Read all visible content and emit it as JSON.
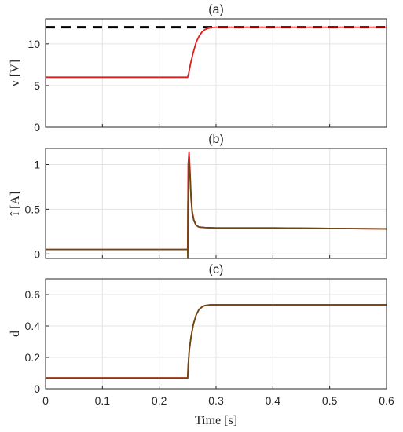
{
  "figure": {
    "xlabel": "Time [s]"
  },
  "chart_data": [
    {
      "type": "line",
      "title": "(a)",
      "xlabel": "",
      "ylabel": "v [V]",
      "xlim": [
        0,
        0.6
      ],
      "ylim": [
        0,
        13
      ],
      "xticks": [
        0,
        0.1,
        0.2,
        0.3,
        0.4,
        0.5,
        0.6
      ],
      "xtick_labels": [
        "",
        "",
        "",
        "",
        "",
        "",
        ""
      ],
      "yticks": [
        0,
        5,
        10
      ],
      "ytick_labels": [
        "0",
        "5",
        "10"
      ],
      "grid": true,
      "series": [
        {
          "role": "reference",
          "color": "#000000",
          "style": "dashed",
          "x": [
            0,
            0.6
          ],
          "y": [
            12,
            12
          ]
        },
        {
          "role": "measured",
          "color": "#e41a1c",
          "style": "solid",
          "x": [
            0,
            0.1,
            0.2,
            0.25,
            0.252,
            0.255,
            0.26,
            0.265,
            0.27,
            0.275,
            0.28,
            0.285,
            0.29,
            0.3,
            0.35,
            0.4,
            0.5,
            0.6
          ],
          "y": [
            6.0,
            6.0,
            6.0,
            6.0,
            6.5,
            7.6,
            9.0,
            10.2,
            10.9,
            11.4,
            11.7,
            11.85,
            11.95,
            12.0,
            12.0,
            12.0,
            12.0,
            12.0
          ]
        }
      ]
    },
    {
      "type": "line",
      "title": "(b)",
      "xlabel": "",
      "ylabel": "î [A]",
      "xlim": [
        0,
        0.6
      ],
      "ylim": [
        -0.05,
        1.18
      ],
      "xticks": [
        0,
        0.1,
        0.2,
        0.3,
        0.4,
        0.5,
        0.6
      ],
      "xtick_labels": [
        "",
        "",
        "",
        "",
        "",
        "",
        ""
      ],
      "yticks": [
        0,
        0.5,
        1
      ],
      "ytick_labels": [
        "0",
        "0.5",
        "1"
      ],
      "grid": true,
      "series": [
        {
          "role": "measured",
          "color": "#e41a1c",
          "style": "solid",
          "x": [
            0,
            0.1,
            0.2,
            0.25,
            0.2505,
            0.251,
            0.2525,
            0.254,
            0.256,
            0.258,
            0.261,
            0.265,
            0.27,
            0.28,
            0.3,
            0.4,
            0.5,
            0.6
          ],
          "y": [
            0.05,
            0.05,
            0.05,
            0.05,
            0.5,
            1.0,
            1.14,
            0.95,
            0.65,
            0.48,
            0.38,
            0.32,
            0.3,
            0.295,
            0.29,
            0.29,
            0.285,
            0.28
          ]
        },
        {
          "role": "estimate",
          "color": "#6b4a12",
          "style": "solid",
          "x": [
            0,
            0.1,
            0.2,
            0.25,
            0.2503,
            0.2505,
            0.2525,
            0.254,
            0.256,
            0.258,
            0.261,
            0.265,
            0.27,
            0.28,
            0.3,
            0.4,
            0.5,
            0.6
          ],
          "y": [
            0.05,
            0.05,
            0.05,
            0.05,
            -0.05,
            0.55,
            1.02,
            0.9,
            0.62,
            0.46,
            0.37,
            0.32,
            0.3,
            0.295,
            0.29,
            0.29,
            0.285,
            0.28
          ]
        }
      ]
    },
    {
      "type": "line",
      "title": "(c)",
      "xlabel": "Time [s]",
      "ylabel": "d",
      "xlim": [
        0,
        0.6
      ],
      "ylim": [
        0,
        0.7
      ],
      "xticks": [
        0,
        0.1,
        0.2,
        0.3,
        0.4,
        0.5,
        0.6
      ],
      "xtick_labels": [
        "0",
        "0.1",
        "0.2",
        "0.3",
        "0.4",
        "0.5",
        "0.6"
      ],
      "yticks": [
        0,
        0.2,
        0.4,
        0.6
      ],
      "ytick_labels": [
        "0",
        "0.2",
        "0.4",
        "0.6"
      ],
      "grid": true,
      "series": [
        {
          "role": "measured",
          "color": "#e41a1c",
          "style": "solid",
          "x": [
            0,
            0.1,
            0.2,
            0.25,
            0.251,
            0.253,
            0.256,
            0.26,
            0.265,
            0.27,
            0.275,
            0.28,
            0.29,
            0.3,
            0.4,
            0.5,
            0.6
          ],
          "y": [
            0.07,
            0.07,
            0.07,
            0.07,
            0.15,
            0.25,
            0.33,
            0.41,
            0.47,
            0.505,
            0.52,
            0.53,
            0.535,
            0.535,
            0.535,
            0.535,
            0.535
          ]
        },
        {
          "role": "estimate",
          "color": "#6b4a12",
          "style": "solid",
          "x": [
            0,
            0.1,
            0.2,
            0.25,
            0.251,
            0.253,
            0.256,
            0.26,
            0.265,
            0.27,
            0.275,
            0.28,
            0.29,
            0.3,
            0.4,
            0.5,
            0.6
          ],
          "y": [
            0.068,
            0.068,
            0.068,
            0.068,
            0.15,
            0.25,
            0.33,
            0.41,
            0.47,
            0.505,
            0.52,
            0.53,
            0.535,
            0.535,
            0.535,
            0.535,
            0.535
          ]
        }
      ]
    }
  ]
}
